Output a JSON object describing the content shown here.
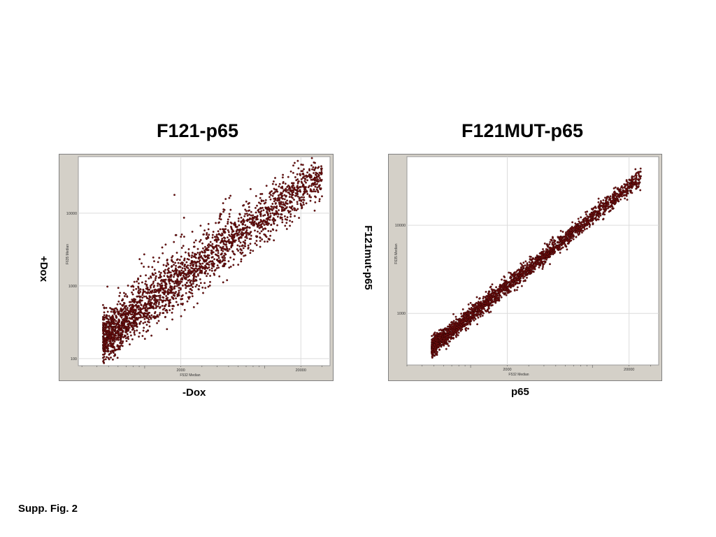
{
  "caption": "Supp. Fig. 2",
  "chart_data": [
    {
      "type": "scatter",
      "title": "F121-p65",
      "xlabel": "-Dox",
      "ylabel": "+Dox",
      "inner_xlabel": "F532 Median",
      "inner_ylabel": "F635 Median",
      "x_scale": "log",
      "y_scale": "log",
      "xlim": [
        280,
        35000
      ],
      "ylim": [
        80,
        60000
      ],
      "x_ticks": [
        {
          "value": 2000,
          "label": "2000"
        },
        {
          "value": 20000,
          "label": "20000"
        }
      ],
      "y_ticks": [
        {
          "value": 100,
          "label": "100"
        },
        {
          "value": 1000,
          "label": "1000"
        },
        {
          "value": 10000,
          "label": "10000"
        }
      ],
      "grid": true,
      "point_color": "#7a1010",
      "correlation": "broad",
      "spread": 0.17,
      "n_points": 2600,
      "x_range_data": [
        450,
        30000
      ],
      "fit_start": [
        450,
        190
      ],
      "fit_end": [
        30000,
        35000
      ],
      "series": [
        {
          "x": [
            450,
            700,
            1000,
            1500,
            2000,
            3000,
            5000,
            8000,
            12000,
            20000,
            30000
          ],
          "y": [
            190,
            380,
            620,
            1000,
            1500,
            2200,
            3600,
            5800,
            8900,
            15500,
            28000
          ]
        }
      ]
    },
    {
      "type": "scatter",
      "title": "F121MUT-p65",
      "xlabel": "p65",
      "ylabel": "F121mut-p65",
      "inner_xlabel": "F532 Median",
      "inner_ylabel": "F635 Median",
      "x_scale": "log",
      "y_scale": "log",
      "xlim": [
        300,
        35000
      ],
      "ylim": [
        260,
        60000
      ],
      "x_ticks": [
        {
          "value": 2000,
          "label": "2000"
        },
        {
          "value": 20000,
          "label": "20000"
        }
      ],
      "y_ticks": [
        {
          "value": 1000,
          "label": "1000"
        },
        {
          "value": 10000,
          "label": "10000"
        }
      ],
      "grid": true,
      "point_color": "#7a1010",
      "correlation": "tight",
      "spread": 0.05,
      "n_points": 2600,
      "x_range_data": [
        480,
        25000
      ],
      "fit_start": [
        480,
        420
      ],
      "fit_end": [
        25000,
        35000
      ],
      "series": [
        {
          "x": [
            480,
            700,
            1000,
            1500,
            2000,
            3000,
            5000,
            8000,
            12000,
            20000,
            25000
          ],
          "y": [
            420,
            640,
            950,
            1450,
            2000,
            3100,
            5300,
            8700,
            13500,
            24000,
            31000
          ]
        }
      ]
    }
  ]
}
